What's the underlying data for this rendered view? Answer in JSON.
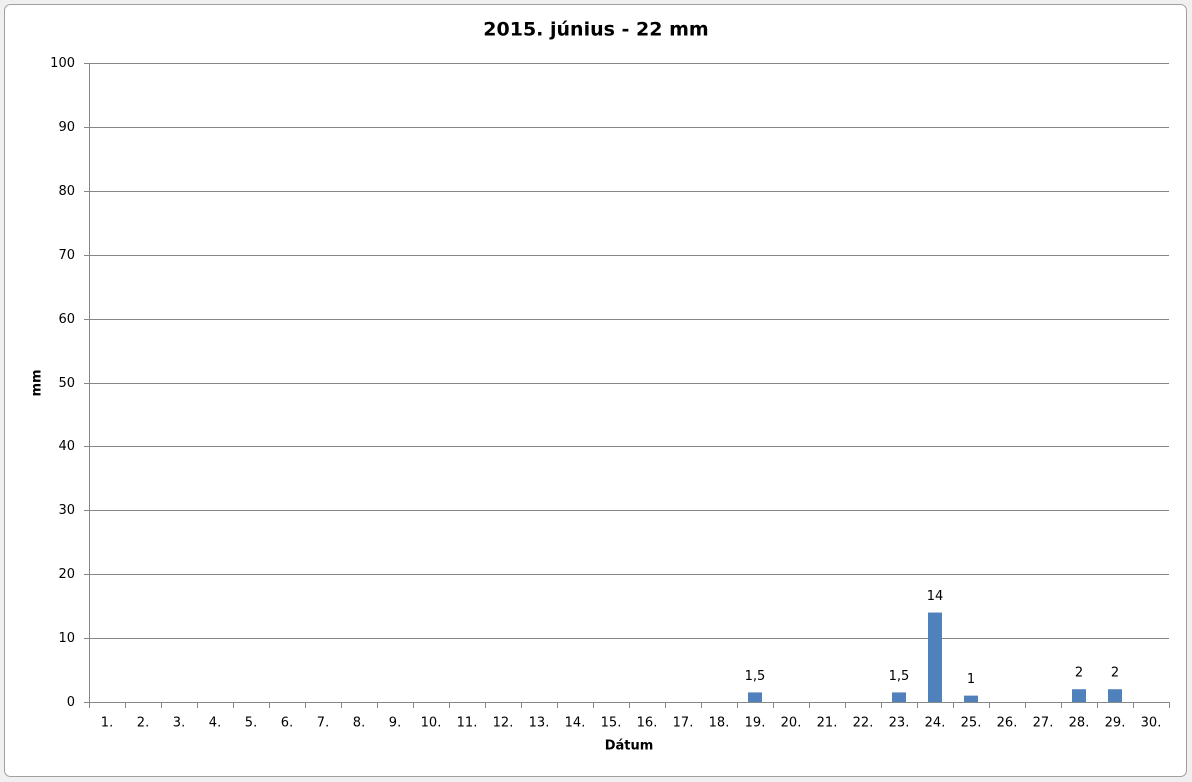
{
  "chart_data": {
    "type": "bar",
    "title": "2015. június - 22 mm",
    "x_label": "Dátum",
    "y_label": "mm",
    "categories": [
      "1.",
      "2.",
      "3.",
      "4.",
      "5.",
      "6.",
      "7.",
      "8.",
      "9.",
      "10.",
      "11.",
      "12.",
      "13.",
      "14.",
      "15.",
      "16.",
      "17.",
      "18.",
      "19.",
      "20.",
      "21.",
      "22.",
      "23.",
      "24.",
      "25.",
      "26.",
      "27.",
      "28.",
      "29.",
      "30."
    ],
    "values": [
      null,
      null,
      null,
      null,
      null,
      null,
      null,
      null,
      null,
      null,
      null,
      null,
      null,
      null,
      null,
      null,
      null,
      null,
      1.5,
      null,
      null,
      null,
      1.5,
      14,
      1,
      null,
      null,
      2,
      2,
      null
    ],
    "value_labels": [
      null,
      null,
      null,
      null,
      null,
      null,
      null,
      null,
      null,
      null,
      null,
      null,
      null,
      null,
      null,
      null,
      null,
      null,
      "1,5",
      null,
      null,
      null,
      "1,5",
      "14",
      "1",
      null,
      null,
      "2",
      "2",
      null
    ],
    "color": "#4f81bd",
    "ylim": [
      0,
      100
    ],
    "yticks": [
      0,
      10,
      20,
      30,
      40,
      50,
      60,
      70,
      80,
      90,
      100
    ],
    "grid": true
  }
}
